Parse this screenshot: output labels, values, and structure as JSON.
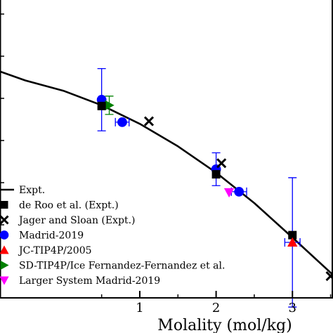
{
  "chart_data": {
    "type": "scatter",
    "xlabel": "Molality (mol/kg)",
    "ylabel": "",
    "xlim": [
      -0.85,
      3.55
    ],
    "ylim": [
      -9.4,
      3.0
    ],
    "x_ticks": [
      "1",
      "2",
      "3"
    ],
    "x_tick_values": [
      1,
      2,
      3
    ],
    "grid": false,
    "legend_position": "bottom-left",
    "curve": {
      "name": "Expt.",
      "color": "#000000",
      "x": [
        -0.85,
        -0.5,
        0.0,
        0.5,
        1.0,
        1.5,
        2.0,
        2.5,
        3.0,
        3.55
      ],
      "y": [
        0.0,
        -0.39,
        -0.82,
        -1.42,
        -2.19,
        -3.12,
        -4.21,
        -5.47,
        -6.9,
        -8.5
      ]
    },
    "series": [
      {
        "name": "de Roo et al. (Expt.)",
        "marker": "square",
        "color": "#000000",
        "x": [
          0.5,
          2.0,
          3.0
        ],
        "y": [
          -1.45,
          -4.28,
          -6.8
        ],
        "yerr": [
          null,
          null,
          null
        ],
        "xerr": [
          null,
          null,
          null
        ]
      },
      {
        "name": "Jager and Sloan (Expt.)",
        "marker": "cross",
        "color": "#000000",
        "x": [
          1.12,
          2.07,
          3.5
        ],
        "y": [
          -2.08,
          -3.82,
          -8.5
        ],
        "yerr": [
          null,
          null,
          null
        ],
        "xerr": [
          null,
          null,
          null
        ]
      },
      {
        "name": "Madrid-2019",
        "marker": "circle",
        "color": "#0000ff",
        "x": [
          0.5,
          0.77,
          2.0,
          2.3
        ],
        "y": [
          -1.19,
          -2.12,
          -4.07,
          -5.0
        ],
        "yerr": [
          1.29,
          null,
          0.68,
          null
        ],
        "xerr": [
          null,
          0.09,
          null,
          0.1
        ]
      },
      {
        "name": "JC-TIP4P/2005",
        "marker": "triangle-up",
        "color": "#ff0000",
        "x": [
          3.0
        ],
        "y": [
          -7.1
        ],
        "yerr": [
          null
        ],
        "xerr": [
          null
        ]
      },
      {
        "name": "SD-TIP4P/Ice Fernandez-Fernandez et al.",
        "marker": "triangle-right",
        "color": "#008000",
        "x": [
          0.6
        ],
        "y": [
          -1.42
        ],
        "yerr": [
          0.38
        ],
        "xerr": [
          null
        ]
      },
      {
        "name": "Larger System Madrid-2019",
        "marker": "triangle-down",
        "color": "#ff00ff",
        "x": [
          2.17
        ],
        "y": [
          -5.03
        ],
        "yerr": [
          null
        ],
        "xerr": [
          null
        ]
      }
    ],
    "extra_errorbars": [
      {
        "color": "#0000ff",
        "x": 3.0,
        "y": -7.1,
        "yerr": 2.68,
        "xerr": 0.1
      }
    ]
  }
}
